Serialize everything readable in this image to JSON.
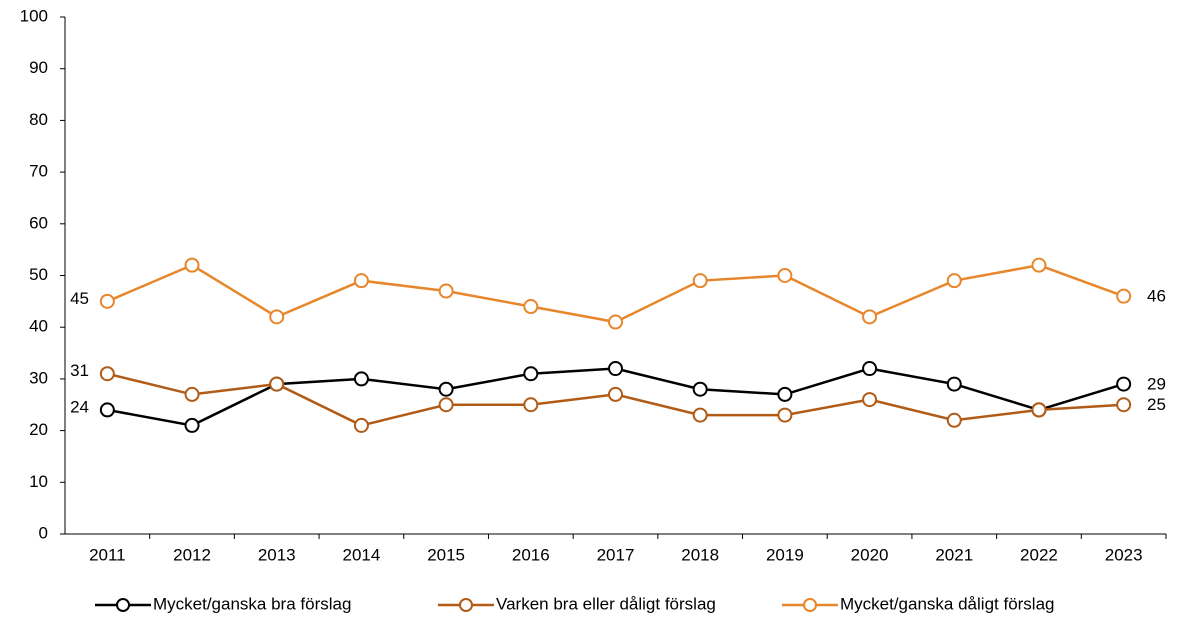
{
  "chart_data": {
    "type": "line",
    "categories": [
      "2011",
      "2012",
      "2013",
      "2014",
      "2015",
      "2016",
      "2017",
      "2018",
      "2019",
      "2020",
      "2021",
      "2022",
      "2023"
    ],
    "series": [
      {
        "name": "Mycket/ganska bra förslag",
        "color": "#000000",
        "values": [
          24,
          21,
          29,
          30,
          28,
          31,
          32,
          28,
          27,
          32,
          29,
          24,
          29
        ]
      },
      {
        "name": "Varken bra eller dåligt förslag",
        "color": "#b15b16",
        "values": [
          31,
          27,
          29,
          21,
          25,
          25,
          27,
          23,
          23,
          26,
          22,
          24,
          25
        ]
      },
      {
        "name": "Mycket/ganska dåligt förslag",
        "color": "#e8862b",
        "values": [
          45,
          52,
          42,
          49,
          47,
          44,
          41,
          49,
          50,
          42,
          49,
          52,
          46
        ]
      }
    ],
    "ylim": [
      0,
      100
    ],
    "yticks": [
      0,
      10,
      20,
      30,
      40,
      50,
      60,
      70,
      80,
      90,
      100
    ],
    "grid": false,
    "legend": "bottom"
  }
}
